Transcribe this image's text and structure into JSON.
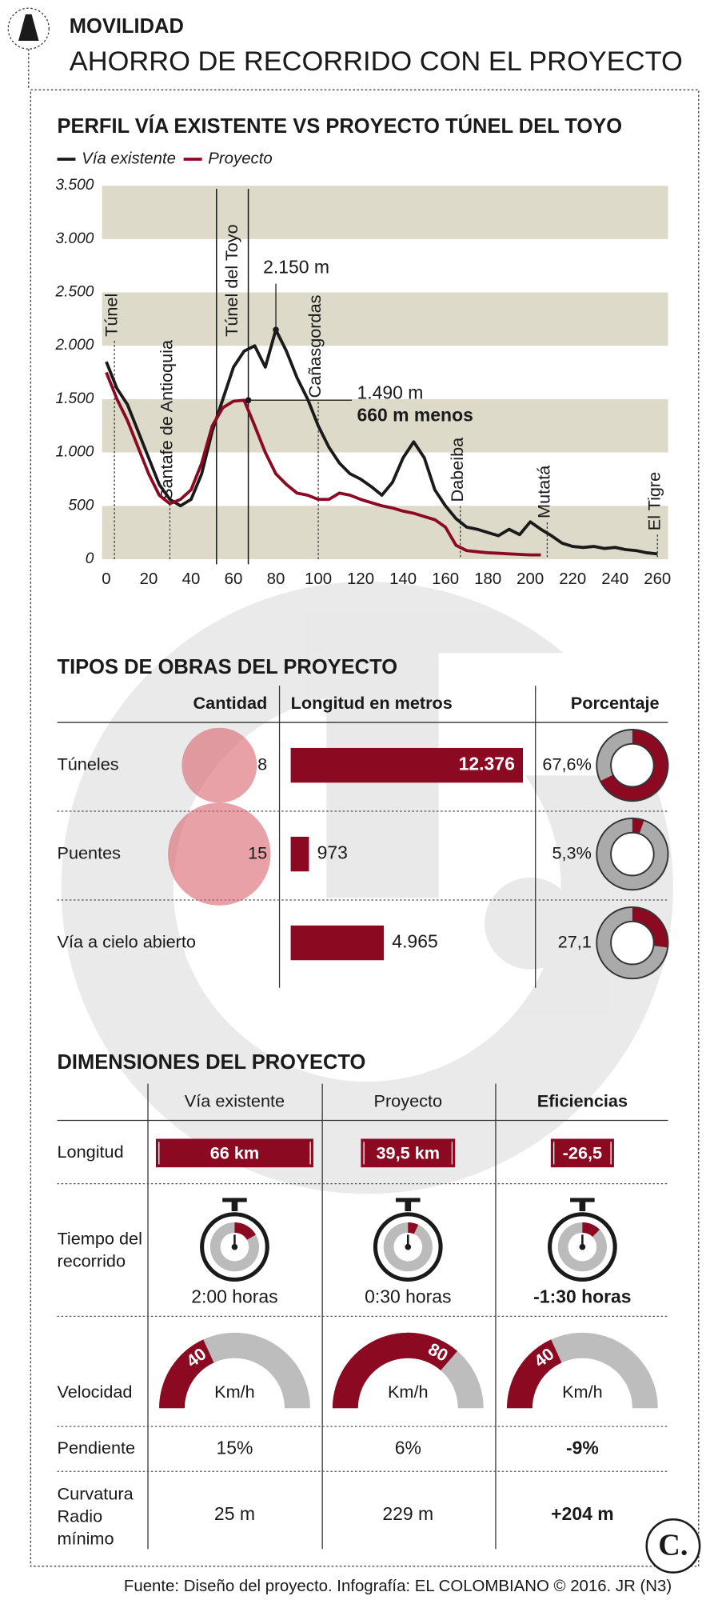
{
  "header": {
    "section": "MOVILIDAD",
    "title": "AHORRO DE RECORRIDO CON EL PROYECTO"
  },
  "chart_data": {
    "type": "line",
    "title": "PERFIL VÍA EXISTENTE VS PROYECTO TÚNEL DEL TOYO",
    "x": [
      0,
      5,
      10,
      15,
      20,
      25,
      30,
      35,
      40,
      45,
      50,
      55,
      60,
      65,
      70,
      75,
      80,
      85,
      90,
      95,
      100,
      105,
      110,
      115,
      120,
      125,
      130,
      135,
      140,
      145,
      150,
      155,
      160,
      165,
      170,
      175,
      180,
      185,
      190,
      195,
      200,
      205,
      210,
      215,
      220,
      225,
      230,
      235,
      240,
      245,
      250,
      255,
      260
    ],
    "series": [
      {
        "name": "Vía existente",
        "color": "#1a1a1a",
        "values": [
          1850,
          1600,
          1450,
          1200,
          950,
          700,
          560,
          500,
          560,
          800,
          1200,
          1500,
          1800,
          1950,
          2000,
          1800,
          2150,
          1950,
          1700,
          1500,
          1250,
          1050,
          900,
          800,
          750,
          680,
          600,
          720,
          950,
          1100,
          950,
          650,
          500,
          380,
          300,
          280,
          250,
          220,
          280,
          230,
          350,
          280,
          220,
          150,
          120,
          110,
          120,
          100,
          110,
          90,
          80,
          60,
          50
        ]
      },
      {
        "name": "Proyecto",
        "color": "#8b0a22",
        "values": [
          1750,
          1500,
          1300,
          1050,
          800,
          600,
          520,
          560,
          650,
          900,
          1250,
          1420,
          1480,
          1490,
          1250,
          1000,
          800,
          700,
          620,
          600,
          560,
          560,
          620,
          600,
          560,
          530,
          500,
          480,
          450,
          430,
          400,
          370,
          300,
          130,
          80,
          70,
          60,
          55,
          50,
          45,
          40,
          40,
          null,
          null,
          null,
          null,
          null,
          null,
          null,
          null,
          null,
          null,
          null
        ]
      }
    ],
    "xlim": [
      -2,
      265
    ],
    "ylim": [
      0,
      3500
    ],
    "xticks": [
      0,
      20,
      40,
      60,
      80,
      100,
      120,
      140,
      160,
      180,
      200,
      220,
      240,
      260
    ],
    "yticks": [
      0,
      500,
      {
        "value": 1000,
        "label": "1.000"
      },
      {
        "value": 1500,
        "label": "1.500"
      },
      {
        "value": 2000,
        "label": "2.000"
      },
      {
        "value": 2500,
        "label": "2.500"
      },
      {
        "value": 3000,
        "label": "3.000"
      },
      {
        "value": 3500,
        "label": "3.500"
      }
    ],
    "grid_bands": true,
    "places": [
      {
        "label": "Túnel",
        "x": 0
      },
      {
        "label": "Santafe de Antioquia",
        "x": 30
      },
      {
        "label": "Cañasgordas",
        "x": 100
      },
      {
        "label": "Dabeiba",
        "x": 167
      },
      {
        "label": "Mutatá",
        "x": 208
      },
      {
        "label": "El Tigre",
        "x": 260
      }
    ],
    "tunnel": {
      "label": "Túnel del Toyo",
      "x": [
        52,
        67
      ]
    },
    "peak": {
      "label": "2.150 m",
      "x": 80,
      "y": 2150
    },
    "project_peak": {
      "label": "1.490 m",
      "x": 67,
      "y": 1490,
      "note": "660 m menos"
    }
  },
  "works": {
    "title": "TIPOS DE OBRAS DEL PROYECTO",
    "headers": [
      "Cantidad",
      "Longitud en metros",
      "Porcentaje"
    ],
    "rows": [
      {
        "name": "Túneles",
        "count": 8,
        "length": 12376,
        "length_label": "12.376",
        "percent": 67.6,
        "percent_label": "67,6%"
      },
      {
        "name": "Puentes",
        "count": 15,
        "length": 973,
        "percent": 5.3,
        "percent_label": "5,3%"
      },
      {
        "name": "Vía a cielo abierto",
        "length": 4965,
        "length_label": "4.965",
        "percent": 27.1,
        "percent_label": "27,1"
      }
    ]
  },
  "dimensions": {
    "title": "DIMENSIONES DEL PROYECTO",
    "headers": [
      "Vía existente",
      "Proyecto",
      "Eficiencias"
    ],
    "length": {
      "label": [
        "Longitud"
      ],
      "values": [
        66,
        39.5,
        -26.5
      ],
      "value_labels": [
        "66 km",
        "39,5 km",
        "-26,5"
      ]
    },
    "time": {
      "label": [
        "Tiempo del",
        "recorrido"
      ],
      "values": [
        "2:00 horas",
        "0:30 horas",
        "-1:30 horas"
      ]
    },
    "speed": {
      "label": [
        "Velocidad"
      ],
      "values": [
        40,
        80,
        40
      ],
      "unit": "Km/h",
      "lim": [
        0,
        110
      ]
    },
    "slope": {
      "label": [
        "Pendiente"
      ],
      "values": [
        "15%",
        "6%",
        "-9%"
      ]
    },
    "curvature": {
      "label": [
        "Curvatura",
        "Radio",
        "mínimo"
      ],
      "values": [
        "25 m",
        "229 m",
        "+204 m"
      ]
    }
  },
  "footer": {
    "source": "Fuente: Diseño del proyecto. Infografía: EL COLOMBIANO © 2016. JR (N3)",
    "logo": "C."
  }
}
